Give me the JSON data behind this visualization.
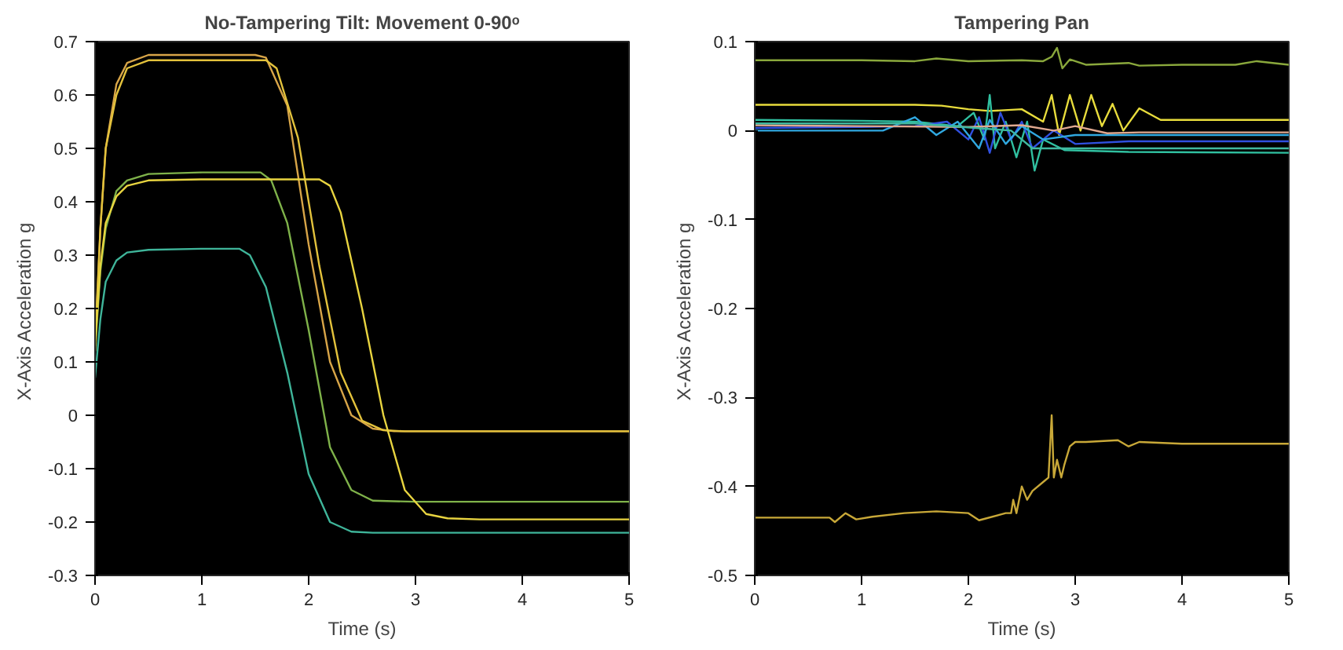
{
  "chart_data": [
    {
      "type": "line",
      "title": "No-Tampering Tilt: Movement 0-90ᵒ",
      "xlabel": "Time (s)",
      "ylabel": "X-Axis Acceleration  g",
      "xlim": [
        0,
        5
      ],
      "ylim": [
        -0.3,
        0.7
      ],
      "xticks": [
        0,
        1,
        2,
        3,
        4,
        5
      ],
      "yticks": [
        -0.3,
        -0.2,
        -0.1,
        0,
        0.1,
        0.2,
        0.3,
        0.4,
        0.5,
        0.6,
        0.7
      ],
      "series": [
        {
          "color": "#d8a548",
          "x": [
            0,
            0.05,
            0.1,
            0.2,
            0.3,
            0.5,
            1.0,
            1.5,
            1.6,
            1.8,
            2.0,
            2.2,
            2.4,
            2.6,
            2.8,
            3.5,
            5
          ],
          "values": [
            0.12,
            0.35,
            0.5,
            0.62,
            0.66,
            0.675,
            0.675,
            0.675,
            0.67,
            0.58,
            0.32,
            0.1,
            0.0,
            -0.025,
            -0.03,
            -0.03,
            -0.03
          ]
        },
        {
          "color": "#e3c23c",
          "x": [
            0,
            0.05,
            0.1,
            0.2,
            0.3,
            0.5,
            1.0,
            1.6,
            1.7,
            1.9,
            2.1,
            2.3,
            2.5,
            2.7,
            2.9,
            3.5,
            5
          ],
          "values": [
            0.14,
            0.35,
            0.5,
            0.6,
            0.65,
            0.665,
            0.665,
            0.665,
            0.65,
            0.52,
            0.28,
            0.08,
            -0.01,
            -0.028,
            -0.03,
            -0.03,
            -0.03
          ]
        },
        {
          "color": "#7fb24a",
          "x": [
            0,
            0.05,
            0.1,
            0.2,
            0.3,
            0.5,
            1.0,
            1.55,
            1.65,
            1.8,
            2.0,
            2.2,
            2.4,
            2.6,
            3,
            5
          ],
          "values": [
            0.12,
            0.27,
            0.35,
            0.42,
            0.44,
            0.452,
            0.455,
            0.455,
            0.44,
            0.36,
            0.16,
            -0.06,
            -0.14,
            -0.16,
            -0.162,
            -0.162
          ]
        },
        {
          "color": "#e8d440",
          "x": [
            0,
            0.05,
            0.1,
            0.2,
            0.3,
            0.5,
            1.0,
            2.1,
            2.2,
            2.3,
            2.5,
            2.7,
            2.9,
            3.1,
            3.3,
            3.6,
            5
          ],
          "values": [
            0.13,
            0.28,
            0.36,
            0.41,
            0.43,
            0.44,
            0.442,
            0.442,
            0.43,
            0.38,
            0.2,
            0.0,
            -0.14,
            -0.185,
            -0.193,
            -0.195,
            -0.195
          ]
        },
        {
          "color": "#3fb59a",
          "x": [
            0,
            0.05,
            0.1,
            0.2,
            0.3,
            0.5,
            1.0,
            1.35,
            1.45,
            1.6,
            1.8,
            2.0,
            2.2,
            2.4,
            2.6,
            3,
            5
          ],
          "values": [
            0.07,
            0.18,
            0.25,
            0.29,
            0.305,
            0.31,
            0.312,
            0.312,
            0.3,
            0.24,
            0.08,
            -0.11,
            -0.2,
            -0.218,
            -0.22,
            -0.22,
            -0.22
          ]
        }
      ]
    },
    {
      "type": "line",
      "title": "Tampering Pan",
      "xlabel": "Time (s)",
      "ylabel": "X-Axis Acceleration  g",
      "xlim": [
        0,
        5
      ],
      "ylim": [
        -0.5,
        0.1
      ],
      "xticks": [
        0,
        1,
        2,
        3,
        4,
        5
      ],
      "yticks": [
        -0.5,
        -0.4,
        -0.3,
        -0.2,
        -0.1,
        0,
        0.1
      ],
      "series": [
        {
          "color": "#8aa83c",
          "x": [
            0,
            1,
            1.5,
            1.7,
            2.0,
            2.5,
            2.7,
            2.78,
            2.83,
            2.88,
            2.95,
            3.1,
            3.5,
            3.6,
            4,
            4.5,
            4.7,
            5
          ],
          "values": [
            0.079,
            0.079,
            0.078,
            0.081,
            0.078,
            0.079,
            0.078,
            0.083,
            0.093,
            0.07,
            0.08,
            0.074,
            0.076,
            0.073,
            0.074,
            0.074,
            0.078,
            0.074
          ]
        },
        {
          "color": "#e8dc3c",
          "x": [
            0,
            0.9,
            1.5,
            1.75,
            2.0,
            2.2,
            2.5,
            2.7,
            2.78,
            2.85,
            2.95,
            3.05,
            3.15,
            3.25,
            3.35,
            3.45,
            3.6,
            3.8,
            5
          ],
          "values": [
            0.029,
            0.029,
            0.029,
            0.028,
            0.024,
            0.022,
            0.024,
            0.01,
            0.04,
            -0.005,
            0.04,
            0.0,
            0.04,
            0.005,
            0.03,
            0.0,
            0.025,
            0.012,
            0.012
          ]
        },
        {
          "color": "#30c0a0",
          "x": [
            0,
            1,
            1.5,
            1.9,
            2.05,
            2.15,
            2.2,
            2.25,
            2.35,
            2.45,
            2.55,
            2.62,
            2.7,
            2.9,
            3.5,
            5
          ],
          "values": [
            0.012,
            0.011,
            0.01,
            0.005,
            0.02,
            -0.01,
            0.04,
            -0.02,
            0.01,
            -0.03,
            0.01,
            -0.045,
            -0.01,
            -0.022,
            -0.024,
            -0.025
          ]
        },
        {
          "color": "#3050e0",
          "x": [
            0,
            1,
            1.5,
            1.8,
            2.0,
            2.1,
            2.2,
            2.3,
            2.4,
            2.5,
            2.6,
            2.8,
            3.0,
            3.5,
            5
          ],
          "values": [
            0.003,
            0.004,
            0.005,
            0.01,
            -0.01,
            0.015,
            -0.025,
            0.02,
            -0.01,
            0.01,
            -0.02,
            0.0,
            -0.015,
            -0.012,
            -0.012
          ]
        },
        {
          "color": "#30a8e0",
          "x": [
            0,
            1.2,
            1.5,
            1.7,
            1.9,
            2.1,
            2.2,
            2.35,
            2.5,
            2.7,
            3.0,
            3.5,
            5
          ],
          "values": [
            0.0,
            0.0,
            0.015,
            -0.005,
            0.01,
            -0.02,
            0.012,
            -0.015,
            0.005,
            -0.01,
            -0.005,
            -0.005,
            -0.005
          ]
        },
        {
          "color": "#e0a890",
          "x": [
            0,
            1,
            2,
            2.5,
            2.8,
            3.0,
            3.3,
            3.6,
            5
          ],
          "values": [
            0.006,
            0.005,
            0.004,
            0.006,
            0.0,
            0.005,
            -0.003,
            -0.002,
            -0.002
          ]
        },
        {
          "color": "#40b8a0",
          "x": [
            0,
            1.5,
            2.4,
            2.6,
            3,
            5
          ],
          "values": [
            0.008,
            0.008,
            0.0,
            -0.02,
            -0.02,
            -0.02
          ]
        },
        {
          "color": "#c8a838",
          "x": [
            0,
            0.7,
            0.75,
            0.85,
            0.95,
            1.1,
            1.4,
            1.7,
            2.0,
            2.1,
            2.35,
            2.4,
            2.42,
            2.45,
            2.5,
            2.55,
            2.6,
            2.7,
            2.75,
            2.78,
            2.8,
            2.83,
            2.87,
            2.9,
            2.95,
            3.0,
            3.1,
            3.4,
            3.5,
            3.6,
            4,
            5
          ],
          "values": [
            -0.435,
            -0.435,
            -0.44,
            -0.43,
            -0.437,
            -0.434,
            -0.43,
            -0.428,
            -0.43,
            -0.438,
            -0.43,
            -0.43,
            -0.415,
            -0.43,
            -0.4,
            -0.415,
            -0.405,
            -0.395,
            -0.39,
            -0.32,
            -0.39,
            -0.37,
            -0.39,
            -0.375,
            -0.355,
            -0.35,
            -0.35,
            -0.348,
            -0.355,
            -0.35,
            -0.352,
            -0.352
          ]
        }
      ]
    }
  ]
}
